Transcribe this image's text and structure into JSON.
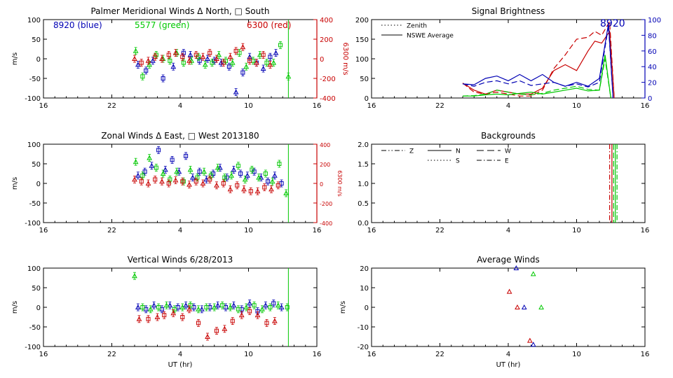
{
  "chart_data": [
    {
      "id": "p1",
      "type": "scatter",
      "title": "Palmer Meridional Winds Δ North, □ South",
      "xlabel": "",
      "ylabel": "m/s",
      "ylabel2": "6300 m/s",
      "xlim": [
        16,
        40
      ],
      "xticks": [
        "16",
        "22",
        "4",
        "10",
        "16"
      ],
      "ylim": [
        -100,
        100
      ],
      "yticks": [
        -100,
        -50,
        0,
        50,
        100
      ],
      "y2lim": [
        -400,
        400
      ],
      "y2ticks": [
        -400,
        -200,
        0,
        200,
        400
      ],
      "legend": [
        {
          "text": "8920 (blue)",
          "color": "#0000b4"
        },
        {
          "text": "5577 (green)",
          "color": "#00c800"
        },
        {
          "text": "6300 (red)",
          "color": "#c80000"
        }
      ],
      "vline": 37.5,
      "series": [
        {
          "name": "8920",
          "color": "#0000b4",
          "x": [
            24.3,
            25.0,
            25.6,
            26.5,
            27.4,
            28.3,
            28.9,
            29.7,
            30.4,
            31.0,
            31.6,
            32.3,
            32.9,
            33.5,
            34.1,
            34.7,
            35.3,
            35.9,
            36.4
          ],
          "y": [
            -15,
            -30,
            -5,
            -50,
            -20,
            15,
            10,
            -5,
            0,
            -5,
            -10,
            -20,
            -85,
            -35,
            5,
            -10,
            -25,
            5,
            15
          ]
        },
        {
          "name": "5577",
          "color": "#00c800",
          "x": [
            24.1,
            24.7,
            25.3,
            25.9,
            26.5,
            27.1,
            27.7,
            28.3,
            29.0,
            29.6,
            30.2,
            30.8,
            31.4,
            32.0,
            32.6,
            33.2,
            33.8,
            34.4,
            35.0,
            35.6,
            36.2,
            36.8,
            37.5
          ],
          "y": [
            20,
            -45,
            -15,
            10,
            0,
            -5,
            15,
            -10,
            -5,
            5,
            -15,
            -10,
            10,
            -5,
            -10,
            15,
            -20,
            -5,
            10,
            -10,
            -10,
            35,
            -45
          ]
        },
        {
          "name": "6300",
          "color": "#c80000",
          "x": [
            24.0,
            24.6,
            25.2,
            25.8,
            26.4,
            27.0,
            27.6,
            28.2,
            28.8,
            29.4,
            30.0,
            30.6,
            31.2,
            31.8,
            32.4,
            32.9,
            33.5,
            34.1,
            34.7,
            35.3,
            35.9
          ],
          "y": [
            0,
            -10,
            -5,
            5,
            0,
            10,
            15,
            5,
            -5,
            10,
            5,
            15,
            0,
            -10,
            5,
            20,
            30,
            -5,
            -10,
            10,
            -15
          ]
        }
      ]
    },
    {
      "id": "p2",
      "type": "line",
      "title": "Signal Brightness",
      "xlabel": "",
      "ylabel": "",
      "xlim": [
        16,
        40
      ],
      "xticks": [
        "16",
        "22",
        "4",
        "10",
        "16"
      ],
      "ylim": [
        0,
        200
      ],
      "yticks": [
        0,
        50,
        100,
        150,
        200
      ],
      "y2lim": [
        0,
        100
      ],
      "y2ticks": [
        0,
        20,
        40,
        60,
        80,
        100
      ],
      "legend": [
        {
          "text": "Zenith",
          "style": "dotted"
        },
        {
          "text": "NSWE Average",
          "style": "solid"
        }
      ],
      "annotation": "8920",
      "series": [
        {
          "name": "6300 NSWE",
          "color": "#c80000",
          "dash": "solid",
          "x": [
            24,
            25,
            26,
            27,
            28,
            29,
            30,
            31,
            32,
            33,
            34,
            35,
            35.6,
            36.2,
            36.9,
            37.3
          ],
          "y": [
            38,
            20,
            10,
            20,
            15,
            10,
            10,
            25,
            70,
            85,
            70,
            120,
            145,
            140,
            170,
            0
          ]
        },
        {
          "name": "6300 zenith",
          "color": "#c80000",
          "dash": "dash",
          "x": [
            24,
            25,
            26,
            27,
            28,
            29,
            30,
            31,
            32,
            33,
            34,
            35,
            35.6,
            36.2,
            36.9,
            37.3
          ],
          "y": [
            38,
            15,
            10,
            15,
            10,
            5,
            5,
            20,
            75,
            110,
            150,
            155,
            170,
            160,
            195,
            0
          ]
        },
        {
          "name": "5577 NSWE",
          "color": "#00c800",
          "dash": "solid",
          "x": [
            24,
            25,
            26,
            27,
            28,
            29,
            30,
            31,
            32,
            33,
            34,
            35,
            36,
            36.5,
            37.0
          ],
          "y": [
            5,
            5,
            8,
            10,
            8,
            12,
            15,
            10,
            15,
            20,
            25,
            18,
            20,
            110,
            0
          ]
        },
        {
          "name": "5577 zenith",
          "color": "#00c800",
          "dash": "dash",
          "x": [
            24,
            25,
            26,
            27,
            28,
            29,
            30,
            31,
            32,
            33,
            34,
            35,
            36,
            36.5,
            37.0
          ],
          "y": [
            5,
            6,
            10,
            20,
            15,
            10,
            8,
            12,
            20,
            25,
            30,
            22,
            20,
            100,
            0
          ]
        },
        {
          "name": "8920 NSWE",
          "color": "#0000b4",
          "dash": "solid",
          "axis": 2,
          "x": [
            24,
            25,
            26,
            27,
            28,
            29,
            30,
            31,
            32,
            33,
            34,
            35,
            36,
            36.8,
            37.2
          ],
          "y": [
            18,
            17,
            25,
            28,
            22,
            30,
            22,
            30,
            20,
            15,
            20,
            15,
            25,
            95,
            0
          ]
        },
        {
          "name": "8920 zenith",
          "color": "#0000b4",
          "dash": "dash",
          "axis": 2,
          "x": [
            24,
            25,
            26,
            27,
            28,
            29,
            30,
            31,
            32,
            33,
            34,
            35,
            36,
            36.8,
            37.2
          ],
          "y": [
            18,
            15,
            20,
            22,
            18,
            22,
            16,
            18,
            20,
            15,
            18,
            14,
            20,
            92,
            0
          ]
        }
      ]
    },
    {
      "id": "p3",
      "type": "scatter",
      "title": "Zonal Winds Δ East, □ West 2013180",
      "xlabel": "",
      "ylabel": "m/s",
      "ylabel2": "6300 m/s",
      "xlim": [
        16,
        40
      ],
      "xticks": [
        "16",
        "22",
        "4",
        "10",
        "16"
      ],
      "ylim": [
        -100,
        100
      ],
      "yticks": [
        -100,
        -50,
        0,
        50,
        100
      ],
      "y2lim": [
        -400,
        400
      ],
      "y2ticks": [
        -400,
        -200,
        0,
        200,
        400
      ],
      "vline": 37.5,
      "series": [
        {
          "name": "8920",
          "color": "#0000b4",
          "x": [
            24.3,
            24.9,
            25.5,
            26.1,
            26.7,
            27.3,
            27.9,
            28.5,
            29.1,
            29.7,
            30.3,
            30.9,
            31.5,
            32.1,
            32.7,
            33.3,
            33.9,
            34.5,
            35.1,
            35.7,
            36.3,
            36.9
          ],
          "y": [
            20,
            30,
            45,
            85,
            35,
            60,
            30,
            70,
            15,
            30,
            10,
            25,
            40,
            15,
            35,
            25,
            20,
            30,
            15,
            5,
            20,
            0
          ]
        },
        {
          "name": "5577",
          "color": "#00c800",
          "x": [
            24.1,
            24.7,
            25.3,
            25.9,
            26.5,
            27.1,
            27.7,
            28.3,
            28.9,
            29.5,
            30.1,
            30.7,
            31.3,
            31.9,
            32.5,
            33.1,
            33.7,
            34.3,
            34.9,
            35.5,
            36.1,
            36.7,
            37.3
          ],
          "y": [
            55,
            20,
            65,
            40,
            25,
            10,
            30,
            5,
            35,
            15,
            30,
            20,
            40,
            15,
            20,
            45,
            10,
            35,
            15,
            25,
            5,
            50,
            -25
          ]
        },
        {
          "name": "6300",
          "color": "#c80000",
          "x": [
            24.0,
            24.6,
            25.2,
            25.8,
            26.4,
            27.0,
            27.6,
            28.2,
            28.8,
            29.4,
            30.0,
            30.6,
            31.2,
            31.8,
            32.4,
            33.0,
            33.6,
            34.2,
            34.8,
            35.4,
            36.0,
            36.6
          ],
          "y": [
            10,
            5,
            0,
            10,
            5,
            0,
            8,
            5,
            -3,
            5,
            0,
            10,
            -5,
            0,
            -15,
            -5,
            -15,
            -20,
            -20,
            -10,
            -15,
            -5
          ]
        }
      ]
    },
    {
      "id": "p4",
      "type": "line",
      "title": "Backgrounds",
      "xlabel": "",
      "ylabel": "",
      "xlim": [
        16,
        40
      ],
      "xticks": [
        "16",
        "22",
        "4",
        "10",
        "16"
      ],
      "ylim": [
        0,
        2
      ],
      "yticks": [
        "0.0",
        "0.5",
        "1.0",
        "1.5",
        "2.0"
      ],
      "legend": [
        {
          "text": "Z",
          "style": "dashdotdot"
        },
        {
          "text": "N",
          "style": "solid"
        },
        {
          "text": "W",
          "style": "longdash"
        },
        {
          "text": "S",
          "style": "dotted"
        },
        {
          "text": "E",
          "style": "dashdot"
        }
      ],
      "vlines": [
        {
          "x": 36.9,
          "color": "#c80000",
          "dash": "dashdot"
        },
        {
          "x": 37.1,
          "color": "#c80000",
          "dash": "solid"
        },
        {
          "x": 37.25,
          "color": "#00c800",
          "dash": "dash"
        },
        {
          "x": 37.4,
          "color": "#00c800",
          "dash": "solid"
        },
        {
          "x": 37.55,
          "color": "#00c800",
          "dash": "dashdot"
        }
      ]
    },
    {
      "id": "p5",
      "type": "scatter",
      "title": "Vertical Winds 6/28/2013",
      "xlabel": "UT (hr)",
      "ylabel": "m/s",
      "xlim": [
        16,
        40
      ],
      "xticks": [
        "16",
        "22",
        "4",
        "10",
        "16"
      ],
      "ylim": [
        -100,
        100
      ],
      "yticks": [
        -100,
        -50,
        0,
        50,
        100
      ],
      "vline": 37.5,
      "series": [
        {
          "name": "8920",
          "color": "#0000b4",
          "x": [
            24.3,
            25.0,
            25.7,
            26.4,
            27.1,
            27.8,
            28.5,
            29.2,
            29.9,
            30.6,
            31.3,
            32.0,
            32.7,
            33.4,
            34.1,
            34.8,
            35.5,
            36.2,
            36.9
          ],
          "y": [
            0,
            -5,
            5,
            -5,
            5,
            0,
            5,
            0,
            -5,
            0,
            5,
            0,
            5,
            -5,
            10,
            -10,
            5,
            10,
            0
          ]
        },
        {
          "name": "5577",
          "color": "#00c800",
          "x": [
            24.0,
            24.7,
            25.4,
            26.1,
            26.8,
            27.5,
            28.2,
            28.9,
            29.6,
            30.3,
            31.0,
            31.7,
            32.4,
            33.1,
            33.8,
            34.5,
            35.2,
            35.9,
            36.6,
            37.4
          ],
          "y": [
            80,
            0,
            -5,
            0,
            5,
            -5,
            0,
            5,
            -5,
            0,
            0,
            5,
            0,
            -5,
            0,
            5,
            -5,
            0,
            5,
            0
          ]
        },
        {
          "name": "6300",
          "color": "#c80000",
          "x": [
            24.4,
            25.2,
            26.0,
            26.6,
            27.4,
            28.2,
            28.8,
            29.6,
            30.4,
            31.2,
            31.9,
            32.6,
            33.4,
            34.1,
            34.8,
            35.6,
            36.3
          ],
          "y": [
            -30,
            -30,
            -25,
            -20,
            -15,
            -25,
            -5,
            -40,
            -75,
            -60,
            -55,
            -35,
            -20,
            -10,
            -20,
            -40,
            -35
          ]
        }
      ]
    },
    {
      "id": "p6",
      "type": "scatter",
      "title": "Average Winds",
      "xlabel": "UT (hr)",
      "ylabel": "m/s",
      "xlim": [
        16,
        40
      ],
      "xticks": [
        "16",
        "22",
        "4",
        "10",
        "16"
      ],
      "ylim": [
        -20,
        20
      ],
      "yticks": [
        -20,
        -10,
        0,
        10,
        20
      ],
      "series": [
        {
          "name": "8920",
          "color": "#0000b4",
          "x": [
            28.7,
            29.4,
            30.2
          ],
          "y": [
            21,
            0,
            -19
          ]
        },
        {
          "name": "5577",
          "color": "#00c800",
          "x": [
            30.2,
            30.9
          ],
          "y": [
            17,
            0
          ]
        },
        {
          "name": "6300",
          "color": "#c80000",
          "x": [
            28.1,
            28.8,
            29.9
          ],
          "y": [
            8,
            0,
            -17
          ]
        }
      ]
    }
  ]
}
